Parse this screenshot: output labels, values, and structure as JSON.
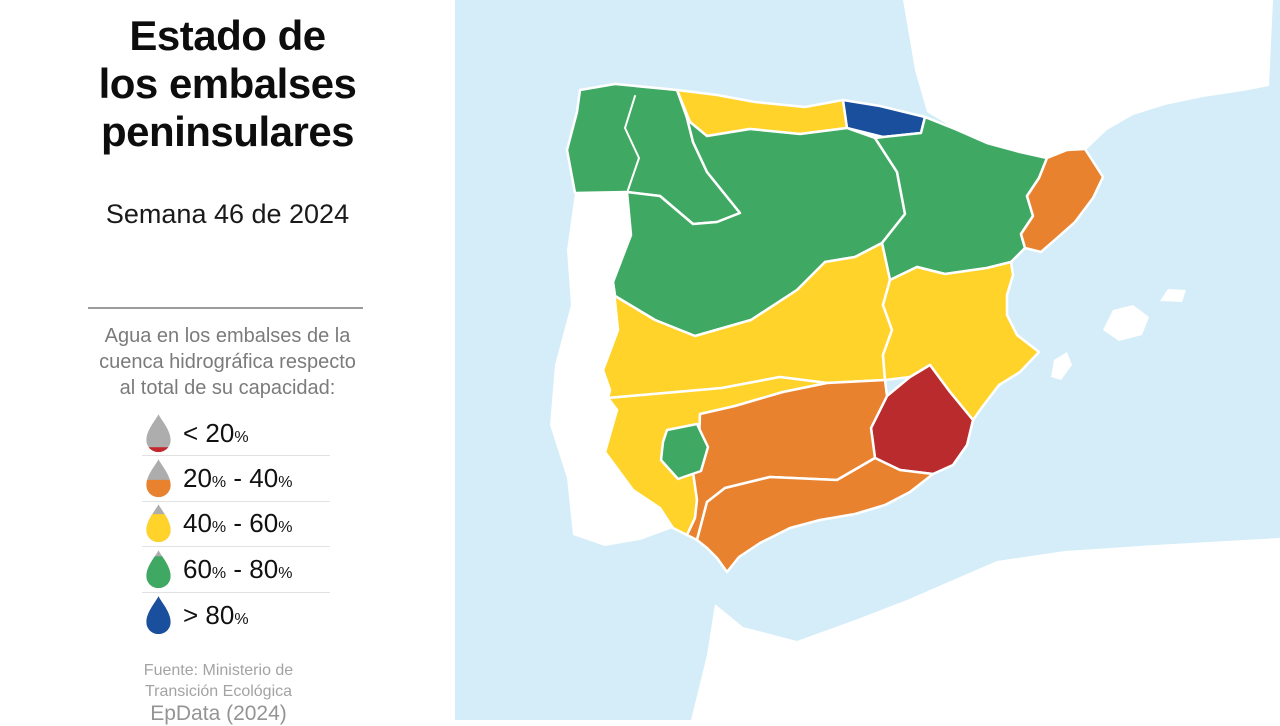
{
  "panel": {
    "title_lines": [
      "Estado de",
      "los embalses",
      "peninsulares"
    ],
    "subtitle": "Semana 46 de 2024",
    "description_lines": [
      "Agua en los embalses de la",
      "cuenca hidrográfica respecto",
      "al total de su capacidad:"
    ],
    "legend": {
      "drop_base_color": "#ADADAD",
      "items": [
        {
          "name": "lt20",
          "color": "#C2282E",
          "fill_pct": 14,
          "label": [
            {
              "t": "< 20"
            },
            {
              "t": "%",
              "small": true
            }
          ]
        },
        {
          "name": "p20-40",
          "color": "#E8822F",
          "fill_pct": 46,
          "label": [
            {
              "t": "20"
            },
            {
              "t": "%",
              "small": true
            },
            {
              "t": " - 40"
            },
            {
              "t": "%",
              "small": true
            }
          ]
        },
        {
          "name": "p40-60",
          "color": "#FFD32A",
          "fill_pct": 74,
          "label": [
            {
              "t": "40"
            },
            {
              "t": "%",
              "small": true
            },
            {
              "t": " - 60"
            },
            {
              "t": "%",
              "small": true
            }
          ]
        },
        {
          "name": "p60-80",
          "color": "#3FA963",
          "fill_pct": 84,
          "label": [
            {
              "t": "60"
            },
            {
              "t": "%",
              "small": true
            },
            {
              "t": " - 80"
            },
            {
              "t": "%",
              "small": true
            }
          ]
        },
        {
          "name": "gt80",
          "color": "#1A4F9D",
          "fill_pct": 100,
          "label": [
            {
              "t": "> 80"
            },
            {
              "t": "%",
              "small": true
            }
          ]
        }
      ]
    },
    "source_lines": [
      "Fuente: Ministerio de",
      "Transición Ecológica"
    ],
    "credit": "EpData (2024)"
  },
  "map": {
    "sea_color": "#D5EDF8",
    "land_color": "#FFFFFF",
    "status_colors": {
      "lt20": "#B92B2D",
      "p20_40": "#E8822F",
      "p40_60": "#FFD32A",
      "p60_80": "#3FA963",
      "gt80": "#1A4F9D"
    },
    "regions": [
      {
        "id": "galicia",
        "status": "p60_80"
      },
      {
        "id": "cantabrico-occidental",
        "status": "p40_60"
      },
      {
        "id": "cantabrico-oriental",
        "status": "gt80"
      },
      {
        "id": "duero",
        "status": "p60_80"
      },
      {
        "id": "ebro",
        "status": "p60_80"
      },
      {
        "id": "cataluna",
        "status": "p20_40"
      },
      {
        "id": "tajo",
        "status": "p40_60"
      },
      {
        "id": "guadiana",
        "status": "p40_60"
      },
      {
        "id": "jucar",
        "status": "p40_60"
      },
      {
        "id": "segura",
        "status": "lt20"
      },
      {
        "id": "guadalquivir",
        "status": "p20_40"
      },
      {
        "id": "mediterranea-andaluza",
        "status": "p20_40"
      },
      {
        "id": "tinto-odiel-piedras",
        "status": "p60_80"
      }
    ]
  }
}
